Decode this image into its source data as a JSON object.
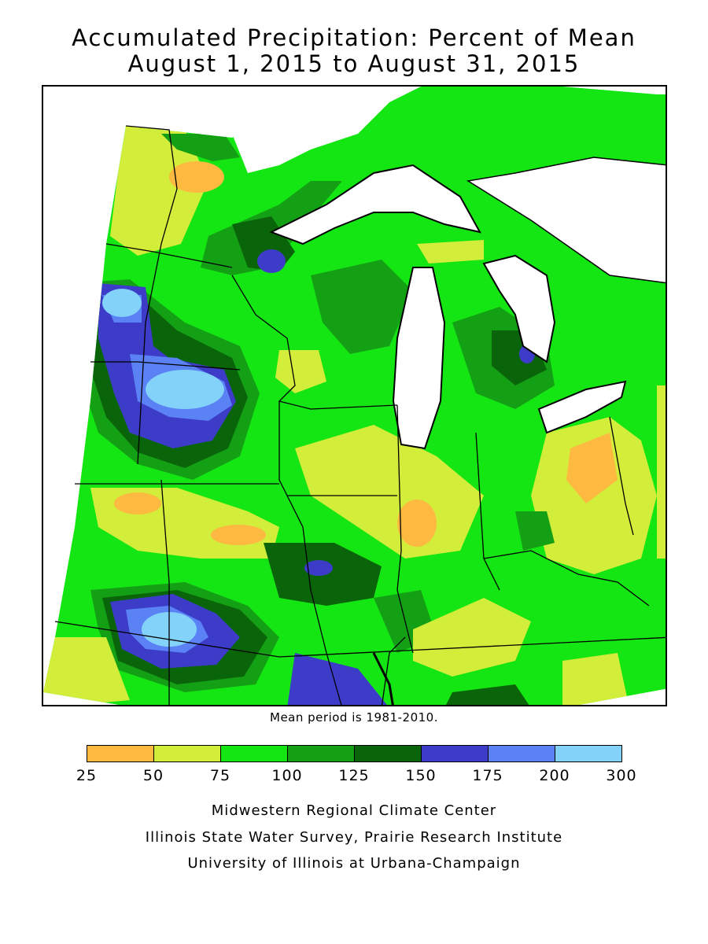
{
  "title": {
    "line1": "Accumulated Precipitation: Percent of Mean",
    "line2": "August 1, 2015 to August 31, 2015"
  },
  "map": {
    "region": "Midwest United States",
    "note": "Mean period is 1981-2010."
  },
  "legend": {
    "bins": [
      {
        "from": 25,
        "to": 50,
        "color": "#fdb940"
      },
      {
        "from": 50,
        "to": 75,
        "color": "#d2ed3a"
      },
      {
        "from": 75,
        "to": 100,
        "color": "#14e614"
      },
      {
        "from": 100,
        "to": 125,
        "color": "#14a014"
      },
      {
        "from": 125,
        "to": 150,
        "color": "#0a640a"
      },
      {
        "from": 150,
        "to": 175,
        "color": "#3c3cc8"
      },
      {
        "from": 175,
        "to": 200,
        "color": "#5a82f5"
      },
      {
        "from": 200,
        "to": 300,
        "color": "#82d2fa"
      }
    ],
    "tick_labels": [
      "25",
      "50",
      "75",
      "100",
      "125",
      "150",
      "175",
      "200",
      "300"
    ]
  },
  "credits": {
    "line1": "Midwestern Regional Climate Center",
    "line2": "Illinois State Water Survey, Prairie Research Institute",
    "line3": "University of Illinois at Urbana-Champaign"
  },
  "colors": {
    "lake": "#ffffff",
    "border": "#000000"
  }
}
